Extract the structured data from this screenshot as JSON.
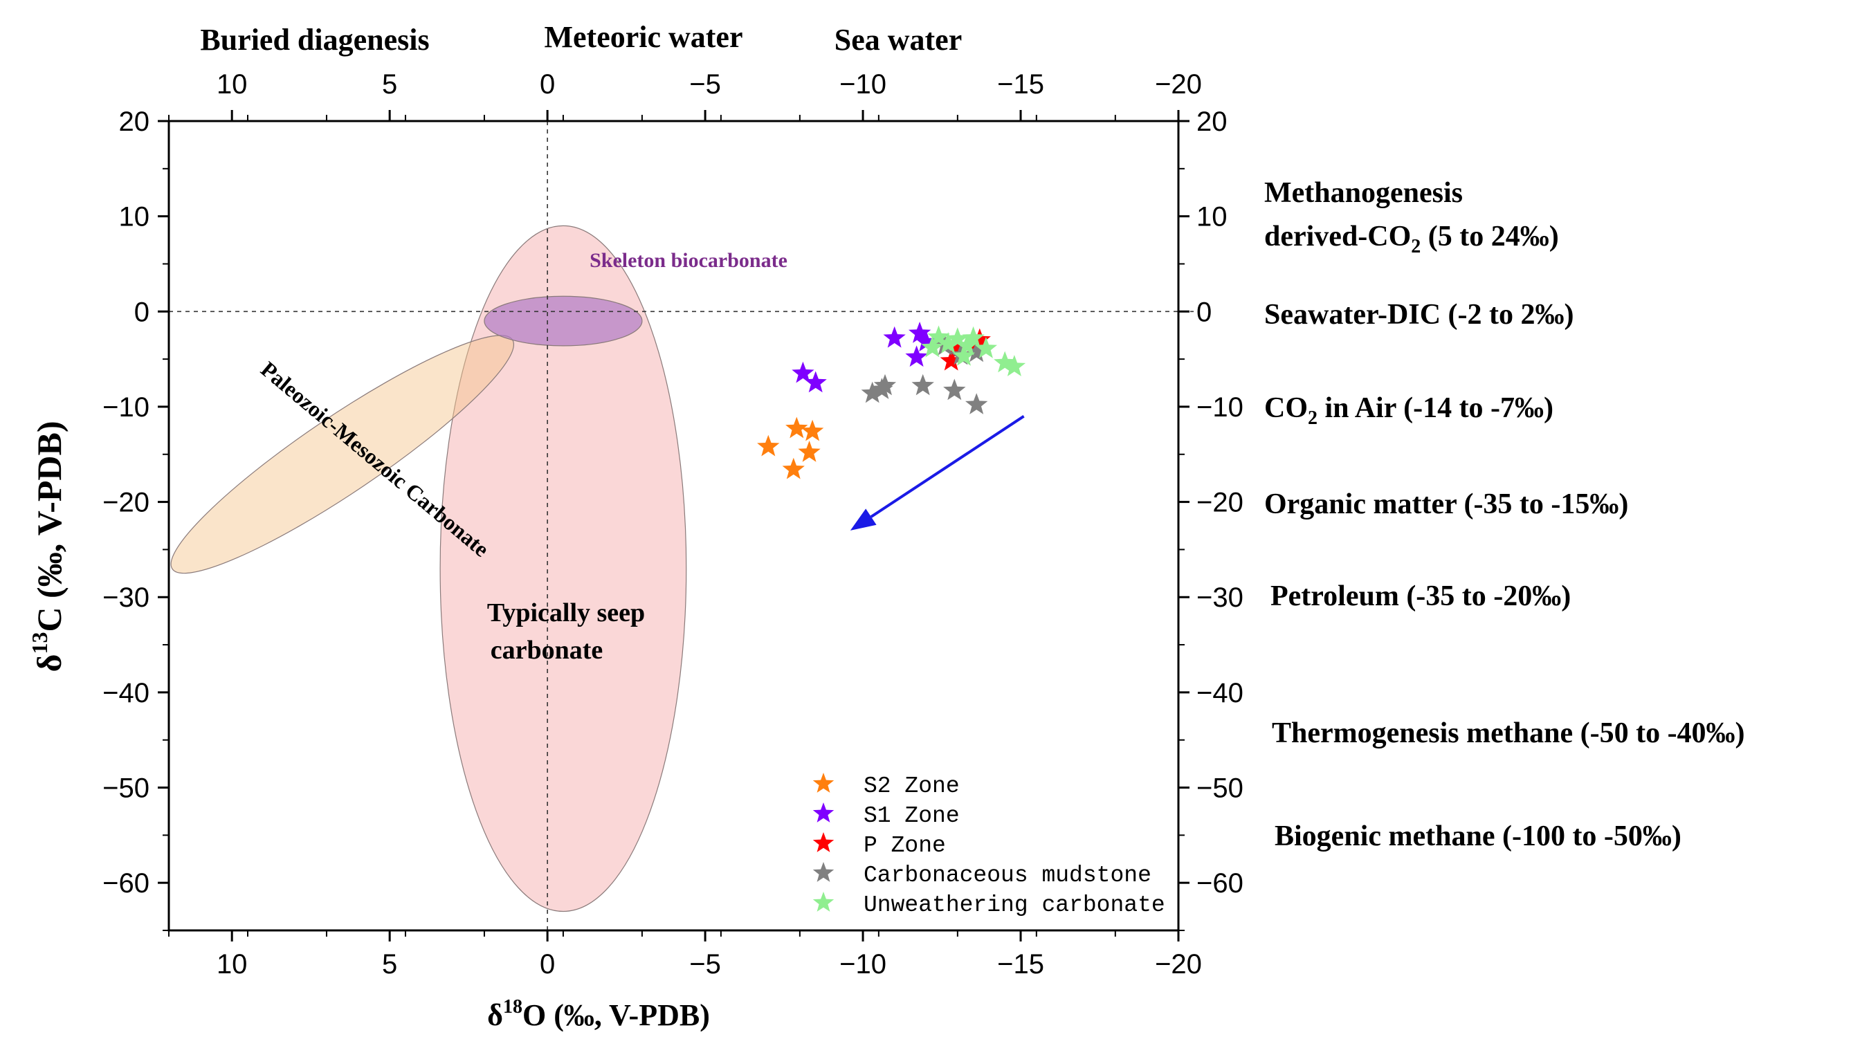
{
  "chart_data": {
    "type": "scatter",
    "xlabel": "δ18O (‰, V-PDB)",
    "ylabel": "δ13C (‰, V-PDB)",
    "xlim": [
      12,
      -20
    ],
    "ylim": [
      -65,
      20
    ],
    "x_ticks": [
      10,
      5,
      0,
      -5,
      -10,
      -15,
      -20
    ],
    "y_ticks": [
      20,
      10,
      0,
      -10,
      -20,
      -30,
      -40,
      -50,
      -60
    ],
    "tick_labels_x": [
      "10",
      "5",
      "0",
      "−5",
      "−10",
      "−15",
      "−20"
    ],
    "tick_labels_y": [
      "20",
      "10",
      "0",
      "−10",
      "−20",
      "−30",
      "−40",
      "−50",
      "−60"
    ],
    "top_labels": [
      "Buried diagenesis",
      "Meteoric water",
      "Sea water"
    ],
    "series": [
      {
        "name": "S2 Zone",
        "color": "#ff7f0e",
        "points": [
          [
            -7.0,
            -14.2
          ],
          [
            -7.9,
            -12.3
          ],
          [
            -8.4,
            -12.6
          ],
          [
            -8.3,
            -14.8
          ],
          [
            -7.8,
            -16.6
          ]
        ]
      },
      {
        "name": "S1 Zone",
        "color": "#7f00ff",
        "points": [
          [
            -8.1,
            -6.5
          ],
          [
            -8.5,
            -7.5
          ],
          [
            -11.0,
            -2.8
          ],
          [
            -11.8,
            -2.3
          ],
          [
            -11.7,
            -4.8
          ],
          [
            -12.0,
            -3.2
          ]
        ]
      },
      {
        "name": "P Zone",
        "color": "#ff0000",
        "points": [
          [
            -12.8,
            -5.2
          ],
          [
            -13.5,
            -3.6
          ],
          [
            -13.7,
            -3.0
          ],
          [
            -13.0,
            -4.0
          ]
        ]
      },
      {
        "name": "Carbonaceous mudstone",
        "color": "#808080",
        "points": [
          [
            -10.3,
            -8.6
          ],
          [
            -10.6,
            -8.2
          ],
          [
            -10.7,
            -7.8
          ],
          [
            -11.9,
            -7.8
          ],
          [
            -12.9,
            -8.3
          ],
          [
            -13.6,
            -9.8
          ],
          [
            -12.6,
            -3.6
          ],
          [
            -13.1,
            -4.6
          ],
          [
            -13.6,
            -4.3
          ]
        ]
      },
      {
        "name": "Unweathering carbonate",
        "color": "#90ee90",
        "points": [
          [
            -12.4,
            -2.7
          ],
          [
            -12.7,
            -3.4
          ],
          [
            -13.0,
            -2.9
          ],
          [
            -13.3,
            -3.6
          ],
          [
            -13.5,
            -2.8
          ],
          [
            -13.9,
            -3.9
          ],
          [
            -14.5,
            -5.4
          ],
          [
            -14.8,
            -5.8
          ],
          [
            -12.2,
            -3.8
          ],
          [
            -13.2,
            -4.7
          ]
        ]
      }
    ],
    "regions": [
      {
        "name": "Skeleton biocarbonate",
        "label": "Skeleton biocarbonate",
        "center": [
          -0.5,
          -1
        ],
        "rx": 2.5,
        "ry": 2.6,
        "rotate": 0,
        "fill": "#b07cc6"
      },
      {
        "name": "Typically seep carbonate",
        "label": "Typically seep carbonate",
        "center": [
          -0.5,
          -27
        ],
        "rx": 3.9,
        "ry": 36,
        "rotate": 0,
        "fill": "#f4a6a6"
      },
      {
        "name": "Paleozoic-Mesozoic Carbonate",
        "label": "Paleozoic-Mesozoic Carbonate",
        "center": [
          6.5,
          -15
        ],
        "rx": 6.5,
        "ry": 4.0,
        "rotate": -34,
        "fill": "#f5c38a"
      }
    ],
    "arrow": {
      "from": [
        -15.1,
        -11
      ],
      "to": [
        -9.6,
        -23
      ]
    },
    "legend_position": "bottom-right"
  },
  "text": {
    "seep_line1": "Typically seep",
    "seep_line2": "carbonate",
    "paleozoic": "Paleozoic-Mesozoic Carbonate",
    "skeleton": "Skeleton biocarbonate",
    "xlabel_prefix": "δ",
    "xlabel_sup": "18",
    "xlabel_rest": "O (‰, V-PDB)",
    "ylabel_prefix": "δ",
    "ylabel_sup": "13",
    "ylabel_rest": "C (‰, V-PDB)"
  },
  "right_panel": {
    "methano_line1": "Methanogenesis",
    "methano_line2_a": "derived-CO",
    "methano_line2_sub": "2",
    "methano_line2_b": " (5 to 24‰)",
    "seawater": "Seawater-DIC (-2 to 2‰)",
    "co2_a": "CO",
    "co2_sub": "2",
    "co2_b": "  in Air (-14 to -7‰)",
    "organic": "Organic matter (-35 to -15‰)",
    "petroleum": "Petroleum (-35 to -20‰)",
    "thermo": "Thermogenesis methane (-50 to -40‰)",
    "biogenic": "Biogenic methane (-100 to -50‰)"
  }
}
